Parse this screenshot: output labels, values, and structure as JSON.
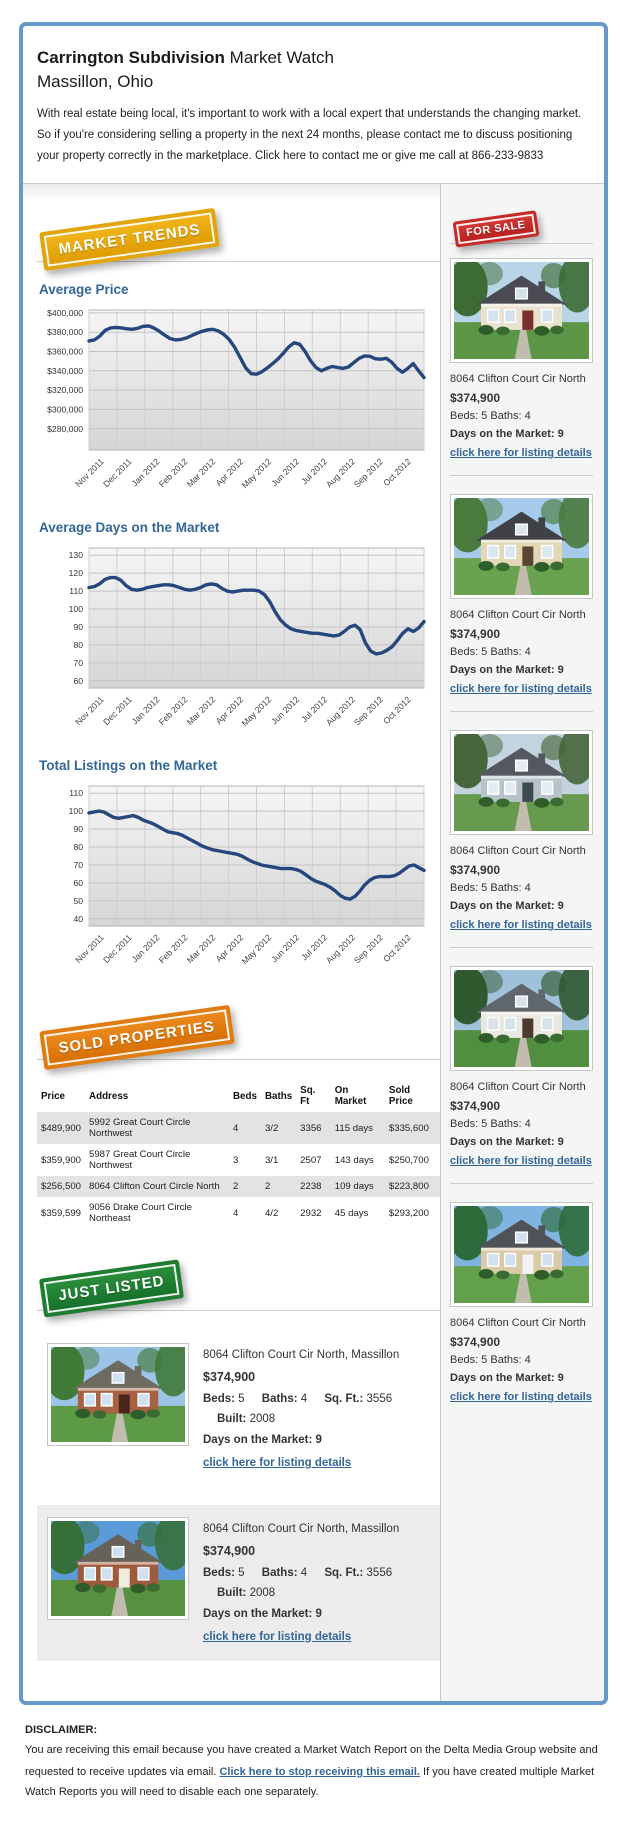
{
  "header": {
    "title_bold": "Carrington Subdivision",
    "title_rest": " Market Watch",
    "subtitle": "Massillon, Ohio",
    "intro": "With real estate being local, it's important to work with a local expert that understands the changing market. So if you're considering selling a property in the next 24 months, please contact me to discuss positioning your property correctly in the marketplace. Click here to contact me or give me call at 866-233-9833"
  },
  "badges": {
    "market_trends": "MARKET TRENDS",
    "for_sale": "FOR SALE",
    "sold_properties": "SOLD PROPERTIES",
    "just_listed": "JUST LISTED"
  },
  "colors": {
    "frame_border": "#6699cc",
    "heading_blue": "#336699",
    "link_blue": "#336699",
    "chart_line": "#26477d",
    "badge_gold": "#e3a50d",
    "badge_red": "#c52a26",
    "badge_orange": "#e07d12",
    "badge_green": "#1f7d31"
  },
  "chart_data": [
    {
      "type": "line",
      "title": "Average Price",
      "categories": [
        "Nov 2011",
        "Dec 2011",
        "Jan 2012",
        "Feb 2012",
        "Mar 2012",
        "Apr 2012",
        "May 2012",
        "Jun 2012",
        "Jul 2012",
        "Aug 2012",
        "Sep 2012",
        "Oct 2012"
      ],
      "y_ticks": [
        400000,
        380000,
        360000,
        340000,
        320000,
        300000,
        280000
      ],
      "y_tick_labels": [
        "$400,000",
        "$380,000",
        "$360,000",
        "$340,000",
        "$320,000",
        "$300,000",
        "$280,000"
      ],
      "ylim": [
        258000,
        403000
      ],
      "line_color": "#26477d",
      "grid": true,
      "legend": "none",
      "values": [
        371000,
        372000,
        376000,
        382000,
        384500,
        385000,
        384500,
        383500,
        383000,
        384000,
        386000,
        386500,
        384500,
        381000,
        377000,
        373500,
        372000,
        372500,
        374000,
        376500,
        379000,
        381000,
        382500,
        383000,
        381000,
        377500,
        372000,
        364000,
        353500,
        343000,
        337000,
        336500,
        339000,
        343000,
        347500,
        352500,
        358500,
        365000,
        369000,
        367500,
        360000,
        350500,
        343500,
        340000,
        342500,
        344500,
        343500,
        342500,
        344000,
        348500,
        353000,
        355500,
        355000,
        352500,
        352000,
        353000,
        349000,
        342500,
        338500,
        342500,
        347500,
        340000,
        333000
      ]
    },
    {
      "type": "line",
      "title": "Average Days on the Market",
      "categories": [
        "Nov 2011",
        "Dec 2011",
        "Jan 2012",
        "Feb 2012",
        "Mar 2012",
        "Apr 2012",
        "May 2012",
        "Jun 2012",
        "Jul 2012",
        "Aug 2012",
        "Sep 2012",
        "Oct 2012"
      ],
      "y_ticks": [
        130,
        120,
        110,
        100,
        90,
        80,
        70,
        60
      ],
      "y_tick_labels": [
        "130",
        "120",
        "110",
        "100",
        "90",
        "80",
        "70",
        "60"
      ],
      "ylim": [
        56,
        134
      ],
      "line_color": "#26477d",
      "grid": true,
      "legend": "none",
      "values": [
        112,
        112.5,
        114,
        116.5,
        117.5,
        117.5,
        116,
        113,
        111,
        110.5,
        111,
        112,
        112.5,
        113,
        113.5,
        113.5,
        113,
        112,
        111,
        110.5,
        111,
        112,
        113.5,
        114,
        113.5,
        111.5,
        110,
        109.5,
        110,
        110.5,
        110.5,
        110.5,
        110,
        108,
        104,
        98.5,
        94,
        91,
        89,
        88,
        87.5,
        87,
        86.5,
        86.5,
        86,
        85.5,
        85,
        85.5,
        87.5,
        90,
        91,
        88.5,
        81,
        76.5,
        75,
        75.5,
        77,
        79,
        82.5,
        86.5,
        89,
        87.5,
        89.5,
        93
      ]
    },
    {
      "type": "line",
      "title": "Total Listings on the Market",
      "categories": [
        "Nov 2011",
        "Dec 2011",
        "Jan 2012",
        "Feb 2012",
        "Mar 2012",
        "Apr 2012",
        "May 2012",
        "Jun 2012",
        "Jul 2012",
        "Aug 2012",
        "Sep 2012",
        "Oct 2012"
      ],
      "y_ticks": [
        110,
        100,
        90,
        80,
        70,
        60,
        50,
        40
      ],
      "y_tick_labels": [
        "110",
        "100",
        "90",
        "80",
        "70",
        "60",
        "50",
        "40"
      ],
      "ylim": [
        36,
        114
      ],
      "line_color": "#26477d",
      "grid": true,
      "legend": "none",
      "values": [
        99,
        99.5,
        100,
        99.5,
        98,
        96.5,
        96,
        96.5,
        97,
        97.5,
        96.5,
        95,
        94,
        93,
        91.5,
        90,
        88.5,
        88,
        87.5,
        86.5,
        85,
        83.5,
        82,
        80.5,
        79.5,
        78.5,
        78,
        77.5,
        77,
        76.5,
        76,
        75,
        73.5,
        72,
        71,
        70,
        69.5,
        69,
        68.5,
        68,
        68,
        68,
        67.5,
        66.5,
        64.5,
        62.5,
        61,
        60,
        59,
        57.5,
        55.5,
        53,
        51.5,
        51,
        52.5,
        55.5,
        59,
        61.5,
        63,
        63.5,
        63.5,
        63.5,
        64,
        65.5,
        67.5,
        69.5,
        70,
        68.5,
        67
      ]
    }
  ],
  "sidebar": {
    "listings": [
      {
        "address": "8064 Clifton Court Cir North",
        "price": "$374,900",
        "specs": "Beds: 5 Baths: 4",
        "days_line": "Days on the Market: 9",
        "link": "click here for listing details"
      },
      {
        "address": "8064 Clifton Court Cir North",
        "price": "$374,900",
        "specs": "Beds: 5 Baths: 4",
        "days_line": "Days on the Market: 9",
        "link": "click here for listing details"
      },
      {
        "address": "8064 Clifton Court Cir North",
        "price": "$374,900",
        "specs": "Beds: 5 Baths: 4",
        "days_line": "Days on the Market: 9",
        "link": "click here for listing details"
      },
      {
        "address": "8064 Clifton Court Cir North",
        "price": "$374,900",
        "specs": "Beds: 5 Baths: 4",
        "days_line": "Days on the Market: 9",
        "link": "click here for listing details"
      },
      {
        "address": "8064 Clifton Court Cir North",
        "price": "$374,900",
        "specs": "Beds: 5 Baths: 4",
        "days_line": "Days on the Market: 9",
        "link": "click here for listing details"
      }
    ]
  },
  "sold_properties": {
    "headers": [
      "Price",
      "Address",
      "Beds",
      "Baths",
      "Sq. Ft",
      "On Market",
      "Sold Price"
    ],
    "rows": [
      [
        "$489,900",
        "5992 Great Court Circle Northwest",
        "4",
        "3/2",
        "3356",
        "115 days",
        "$335,600"
      ],
      [
        "$359,900",
        "5987 Great Court Circle Northwest",
        "3",
        "3/1",
        "2507",
        "143 days",
        "$250,700"
      ],
      [
        "$256,500",
        "8064 Clifton Court Circle North",
        "2",
        "2",
        "2238",
        "109 days",
        "$223,800"
      ],
      [
        "$359,599",
        "9056 Drake Court Circle Northeast",
        "4",
        "4/2",
        "2932",
        "45 days",
        "$293,200"
      ]
    ]
  },
  "just_listed": {
    "labels": {
      "beds": "Beds:",
      "baths": "Baths:",
      "sqft": "Sq. Ft.:",
      "built": "Built:",
      "days": "Days on the Market:"
    },
    "items": [
      {
        "address": "8064 Clifton Court Cir North, Massillon",
        "price": "$374,900",
        "beds": "5",
        "baths": "4",
        "sqft": "3556",
        "built": "2008",
        "days": "9",
        "link": "click here for listing details"
      },
      {
        "address": "8064 Clifton Court Cir North, Massillon",
        "price": "$374,900",
        "beds": "5",
        "baths": "4",
        "sqft": "3556",
        "built": "2008",
        "days": "9",
        "link": "click here for listing details"
      }
    ]
  },
  "disclaimer": {
    "heading": "DISCLAIMER:",
    "text_before": "You are receiving this email because you have created a Market Watch Report on the Delta Media Group website and requested to receive updates via email. ",
    "link": "Click here to stop receiving this email.",
    "text_after": " If you have created multiple Market Watch Reports you will need to disable each one separately."
  }
}
